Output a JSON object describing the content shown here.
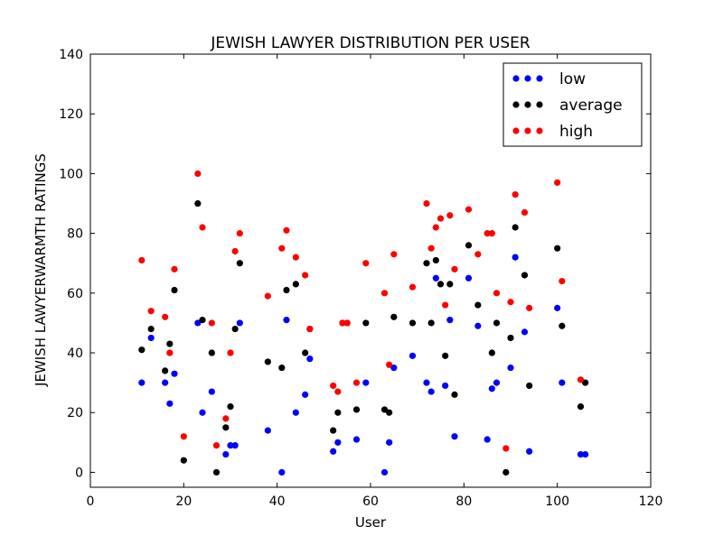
{
  "chart_data": {
    "type": "scatter",
    "title": "JEWISH LAWYER DISTRIBUTION PER USER",
    "xlabel": "User",
    "ylabel": "JEWISH LAWYERWARMTH RATINGS",
    "xlim": [
      0,
      120
    ],
    "ylim": [
      -5,
      140
    ],
    "xticks": [
      0,
      20,
      40,
      60,
      80,
      100,
      120
    ],
    "yticks": [
      0,
      20,
      40,
      60,
      80,
      100,
      120,
      140
    ],
    "grid": false,
    "legend_position": "top-right",
    "series": [
      {
        "name": "low",
        "color": "#0000ff",
        "points": [
          [
            11,
            30
          ],
          [
            13,
            45
          ],
          [
            16,
            30
          ],
          [
            17,
            23
          ],
          [
            18,
            33
          ],
          [
            23,
            50
          ],
          [
            24,
            20
          ],
          [
            26,
            27
          ],
          [
            29,
            6
          ],
          [
            30,
            9
          ],
          [
            31,
            9
          ],
          [
            32,
            50
          ],
          [
            38,
            14
          ],
          [
            41,
            0
          ],
          [
            42,
            51
          ],
          [
            44,
            20
          ],
          [
            46,
            26
          ],
          [
            47,
            38
          ],
          [
            52,
            7
          ],
          [
            53,
            10
          ],
          [
            57,
            11
          ],
          [
            59,
            30
          ],
          [
            63,
            0
          ],
          [
            64,
            10
          ],
          [
            65,
            35
          ],
          [
            69,
            39
          ],
          [
            72,
            30
          ],
          [
            73,
            27
          ],
          [
            74,
            65
          ],
          [
            76,
            29
          ],
          [
            77,
            51
          ],
          [
            78,
            12
          ],
          [
            81,
            65
          ],
          [
            83,
            49
          ],
          [
            85,
            11
          ],
          [
            86,
            28
          ],
          [
            87,
            30
          ],
          [
            90,
            35
          ],
          [
            91,
            72
          ],
          [
            93,
            47
          ],
          [
            94,
            7
          ],
          [
            100,
            55
          ],
          [
            101,
            30
          ],
          [
            105,
            6
          ],
          [
            106,
            6
          ]
        ]
      },
      {
        "name": "average",
        "color": "#000000",
        "points": [
          [
            11,
            41
          ],
          [
            13,
            48
          ],
          [
            16,
            34
          ],
          [
            17,
            43
          ],
          [
            18,
            61
          ],
          [
            20,
            4
          ],
          [
            23,
            90
          ],
          [
            24,
            51
          ],
          [
            26,
            40
          ],
          [
            27,
            0
          ],
          [
            29,
            15
          ],
          [
            30,
            22
          ],
          [
            31,
            48
          ],
          [
            32,
            70
          ],
          [
            38,
            37
          ],
          [
            41,
            35
          ],
          [
            42,
            61
          ],
          [
            44,
            63
          ],
          [
            46,
            40
          ],
          [
            47,
            48
          ],
          [
            52,
            14
          ],
          [
            53,
            20
          ],
          [
            54,
            50
          ],
          [
            55,
            50
          ],
          [
            57,
            21
          ],
          [
            59,
            50
          ],
          [
            63,
            21
          ],
          [
            64,
            20
          ],
          [
            65,
            52
          ],
          [
            69,
            50
          ],
          [
            72,
            70
          ],
          [
            73,
            50
          ],
          [
            74,
            71
          ],
          [
            75,
            63
          ],
          [
            76,
            39
          ],
          [
            77,
            63
          ],
          [
            78,
            26
          ],
          [
            81,
            76
          ],
          [
            83,
            56
          ],
          [
            86,
            40
          ],
          [
            87,
            50
          ],
          [
            89,
            0
          ],
          [
            90,
            45
          ],
          [
            91,
            82
          ],
          [
            93,
            66
          ],
          [
            94,
            29
          ],
          [
            100,
            75
          ],
          [
            101,
            49
          ],
          [
            105,
            22
          ],
          [
            106,
            30
          ]
        ]
      },
      {
        "name": "high",
        "color": "#ff0000",
        "points": [
          [
            11,
            71
          ],
          [
            13,
            54
          ],
          [
            16,
            52
          ],
          [
            17,
            40
          ],
          [
            18,
            68
          ],
          [
            20,
            12
          ],
          [
            23,
            100
          ],
          [
            24,
            82
          ],
          [
            26,
            50
          ],
          [
            27,
            9
          ],
          [
            29,
            18
          ],
          [
            30,
            40
          ],
          [
            31,
            74
          ],
          [
            32,
            80
          ],
          [
            38,
            59
          ],
          [
            41,
            75
          ],
          [
            42,
            81
          ],
          [
            44,
            72
          ],
          [
            46,
            66
          ],
          [
            47,
            48
          ],
          [
            52,
            29
          ],
          [
            53,
            27
          ],
          [
            54,
            50
          ],
          [
            55,
            50
          ],
          [
            57,
            30
          ],
          [
            59,
            70
          ],
          [
            63,
            60
          ],
          [
            64,
            36
          ],
          [
            65,
            73
          ],
          [
            69,
            62
          ],
          [
            72,
            90
          ],
          [
            73,
            75
          ],
          [
            74,
            82
          ],
          [
            75,
            85
          ],
          [
            76,
            56
          ],
          [
            77,
            86
          ],
          [
            78,
            68
          ],
          [
            81,
            88
          ],
          [
            83,
            73
          ],
          [
            85,
            80
          ],
          [
            86,
            80
          ],
          [
            87,
            60
          ],
          [
            89,
            8
          ],
          [
            90,
            57
          ],
          [
            91,
            93
          ],
          [
            93,
            87
          ],
          [
            94,
            55
          ],
          [
            100,
            97
          ],
          [
            101,
            64
          ],
          [
            105,
            31
          ]
        ]
      }
    ]
  }
}
